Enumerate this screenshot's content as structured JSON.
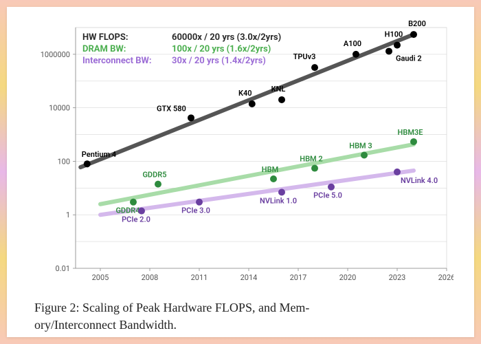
{
  "caption_line1": "Figure 2: Scaling of Peak Hardware FLOPS, and Mem-",
  "caption_line2": "ory/Interconnect Bandwidth.",
  "chart": {
    "type": "scatter",
    "background": "#ffffff",
    "grid_color": "#d8d8d8",
    "axis_color": "#888888",
    "tick_fontsize": 11,
    "label_fontsize": 11,
    "x": {
      "min": 2003.5,
      "max": 2026,
      "ticks": [
        2005,
        2008,
        2011,
        2014,
        2017,
        2020,
        2023,
        2026
      ]
    },
    "y": {
      "min": 0.01,
      "max": 10000000,
      "log": true,
      "ticks": [
        0.01,
        1,
        100,
        10000,
        1000000
      ],
      "tick_labels": [
        "0.01",
        "1",
        "100",
        "10000",
        "1000000"
      ]
    },
    "legend": [
      {
        "key": "HW FLOPS:",
        "value": "60000x / 20 yrs (3.0x/2yrs)",
        "color": "#2b2b2b"
      },
      {
        "key": "DRAM BW:",
        "value": "100x / 20 yrs (1.6x/2yrs)",
        "color": "#4caf50"
      },
      {
        "key": "Interconnect BW:",
        "value": "30x / 20 yrs (1.4x/2yrs)",
        "color": "#9c6dd6"
      }
    ],
    "series": [
      {
        "name": "flops",
        "color": "#2b2b2b",
        "marker_color": "#000000",
        "marker_radius": 5,
        "trend": {
          "x1": 2003.8,
          "y1": 60,
          "x2": 2024,
          "y2": 5500000,
          "width": 6,
          "color": "#555555"
        },
        "points": [
          {
            "x": 2004.2,
            "y": 80,
            "label": "Pentium 4",
            "dx": -8,
            "dy": -10,
            "anchor": "start"
          },
          {
            "x": 2010.5,
            "y": 4200,
            "label": "GTX 580",
            "dx": -50,
            "dy": -10,
            "anchor": "start"
          },
          {
            "x": 2014.2,
            "y": 14000,
            "label": "K40",
            "dx": -10,
            "dy": -12,
            "anchor": "middle"
          },
          {
            "x": 2016,
            "y": 20000,
            "label": "KNL",
            "dx": -5,
            "dy": -12,
            "anchor": "middle"
          },
          {
            "x": 2018,
            "y": 320000,
            "label": "TPUv3",
            "dx": -15,
            "dy": -12,
            "anchor": "middle"
          },
          {
            "x": 2020.5,
            "y": 1000000,
            "label": "A100",
            "dx": -5,
            "dy": -12,
            "anchor": "middle"
          },
          {
            "x": 2022.5,
            "y": 1300000,
            "label": "Gaudi 2",
            "dx": 10,
            "dy": 14,
            "anchor": "start"
          },
          {
            "x": 2023,
            "y": 2200000,
            "label": "H100",
            "dx": -5,
            "dy": -12,
            "anchor": "middle"
          },
          {
            "x": 2024,
            "y": 5500000,
            "label": "B200",
            "dx": 5,
            "dy": -12,
            "anchor": "middle"
          }
        ]
      },
      {
        "name": "dram",
        "color": "#7cc88a",
        "marker_color": "#2e8b3e",
        "marker_radius": 5,
        "trend": {
          "x1": 2005,
          "y1": 2.5,
          "x2": 2024,
          "y2": 430,
          "width": 6,
          "color": "#a8dca8"
        },
        "points": [
          {
            "x": 2007,
            "y": 3,
            "label": "GDDR4",
            "dx": -8,
            "dy": 16,
            "anchor": "middle"
          },
          {
            "x": 2008.5,
            "y": 14,
            "label": "GDDR5",
            "dx": -5,
            "dy": -10,
            "anchor": "middle"
          },
          {
            "x": 2015.5,
            "y": 22,
            "label": "HBM",
            "dx": -5,
            "dy": -10,
            "anchor": "middle"
          },
          {
            "x": 2018,
            "y": 55,
            "label": "HBM 2",
            "dx": -5,
            "dy": -10,
            "anchor": "middle"
          },
          {
            "x": 2021,
            "y": 170,
            "label": "HBM 3",
            "dx": -5,
            "dy": -10,
            "anchor": "middle"
          },
          {
            "x": 2024,
            "y": 540,
            "label": "HBM3E",
            "dx": -5,
            "dy": -10,
            "anchor": "middle"
          }
        ]
      },
      {
        "name": "interconnect",
        "color": "#c9a8e8",
        "marker_color": "#6a3fa0",
        "marker_radius": 5,
        "trend": {
          "x1": 2005,
          "y1": 1,
          "x2": 2024,
          "y2": 45,
          "width": 6,
          "color": "#d4b8ec"
        },
        "points": [
          {
            "x": 2007.5,
            "y": 1.4,
            "label": "PCIe 2.0",
            "dx": -8,
            "dy": 16,
            "anchor": "middle"
          },
          {
            "x": 2011,
            "y": 3.0,
            "label": "PCIe 3.0",
            "dx": -5,
            "dy": 16,
            "anchor": "middle"
          },
          {
            "x": 2016,
            "y": 7,
            "label": "NVLink 1.0",
            "dx": -5,
            "dy": 16,
            "anchor": "middle"
          },
          {
            "x": 2019,
            "y": 11,
            "label": "PCIe 5.0",
            "dx": -5,
            "dy": 16,
            "anchor": "middle"
          },
          {
            "x": 2023,
            "y": 40,
            "label": "NVLink 4.0",
            "dx": 5,
            "dy": 16,
            "anchor": "start"
          }
        ]
      }
    ]
  }
}
